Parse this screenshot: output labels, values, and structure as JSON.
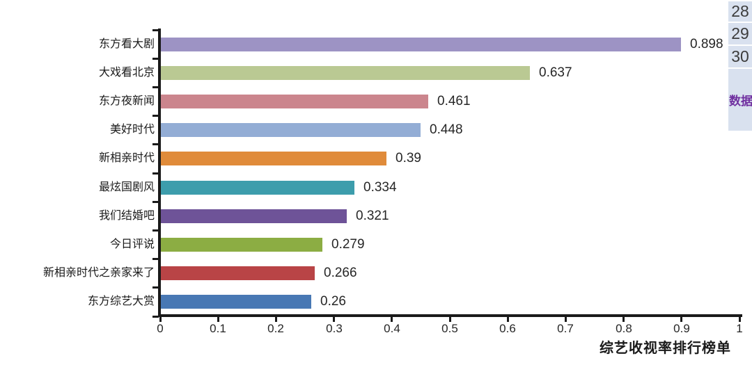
{
  "chart_data": {
    "type": "bar",
    "orientation": "horizontal",
    "title": "",
    "xlabel": "综艺收视率排行榜单",
    "ylabel": "",
    "categories": [
      "东方看大剧",
      "大戏看北京",
      "东方夜新闻",
      "美好时代",
      "新相亲时代",
      "最炫国剧风",
      "我们结婚吧",
      "今日评说",
      "新相亲时代之亲家来了",
      "东方综艺大赏"
    ],
    "values": [
      0.898,
      0.637,
      0.461,
      0.448,
      0.39,
      0.334,
      0.321,
      0.279,
      0.266,
      0.26
    ],
    "value_labels": [
      "0.898",
      "0.637",
      "0.461",
      "0.448",
      "0.39",
      "0.334",
      "0.321",
      "0.279",
      "0.266",
      "0.26"
    ],
    "bar_colors": [
      "#9d93c4",
      "#bac993",
      "#cb858d",
      "#93add5",
      "#e08b3a",
      "#3d9dac",
      "#6e5398",
      "#8cad43",
      "#b94446",
      "#4878b4"
    ],
    "xlim": [
      0,
      1
    ],
    "x_ticks": [
      "0",
      "0.1",
      "0.2",
      "0.3",
      "0.4",
      "0.5",
      "0.6",
      "0.7",
      "0.8",
      "0.9",
      "1"
    ],
    "grid": false,
    "legend": false,
    "axis_color": "#1a1a1a",
    "value_label_color": "#262626"
  },
  "spreadsheet_panel": {
    "row_numbers": [
      "28",
      "29",
      "30"
    ],
    "partial_cell_text": "数据",
    "text_color": "#7030a0",
    "number_color": "#3c3c3c",
    "background": "#d9e1ef"
  }
}
